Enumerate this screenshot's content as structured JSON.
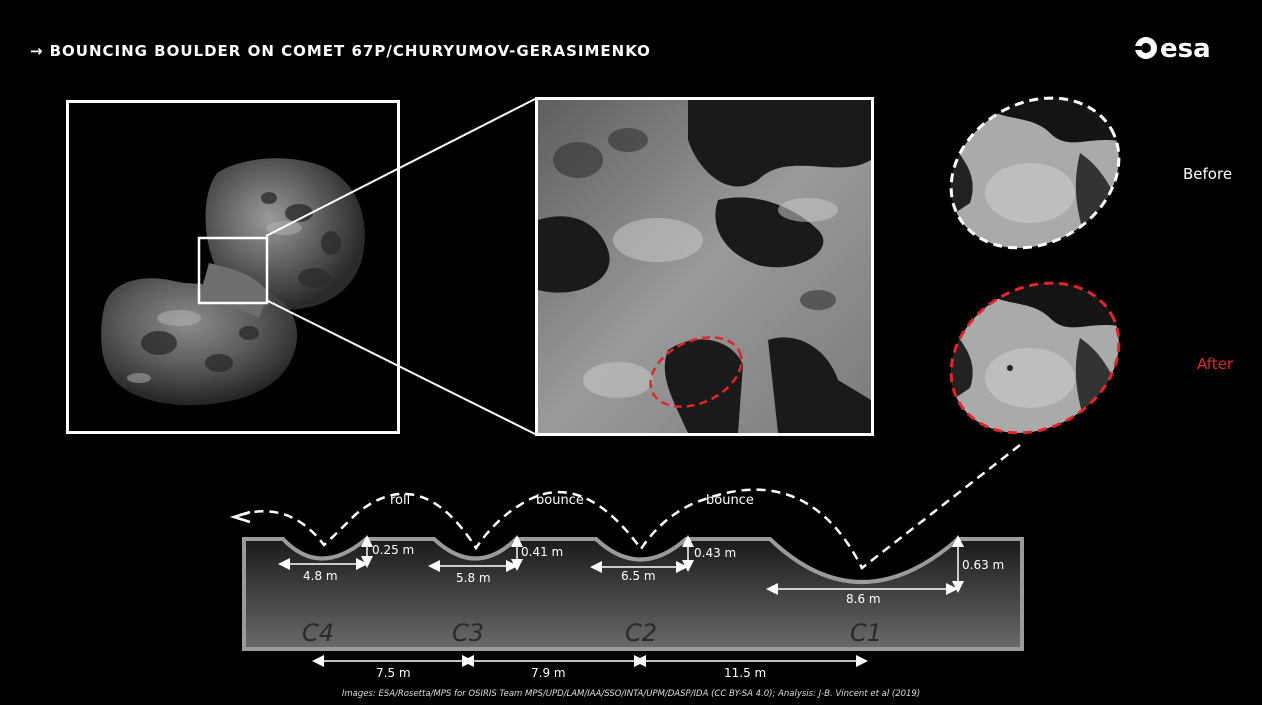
{
  "header": {
    "title": "BOUNCING BOULDER ON COMET 67P/CHURYUMOV-GERASIMENKO",
    "arrow": "→",
    "logo_text": "esa"
  },
  "insets": {
    "before_label": "Before",
    "after_label": "After",
    "after_color": "#e0262b"
  },
  "profile": {
    "motions": [
      "roll",
      "bounce",
      "bounce"
    ],
    "craters": [
      {
        "name": "C4",
        "width": "4.8 m",
        "depth": "0.25 m"
      },
      {
        "name": "C3",
        "width": "5.8 m",
        "depth": "0.41 m"
      },
      {
        "name": "C2",
        "width": "6.5 m",
        "depth": "0.43 m"
      },
      {
        "name": "C1",
        "width": "8.6 m",
        "depth": "0.63 m"
      }
    ],
    "spacings": [
      "7.5 m",
      "7.9 m",
      "11.5 m"
    ]
  },
  "credits": "Images: ESA/Rosetta/MPS for OSIRIS Team MPS/UPD/LAM/IAA/SSO/INTA/UPM/DASP/IDA (CC BY-SA 4.0); Analysis: J-B. Vincent et al (2019)"
}
